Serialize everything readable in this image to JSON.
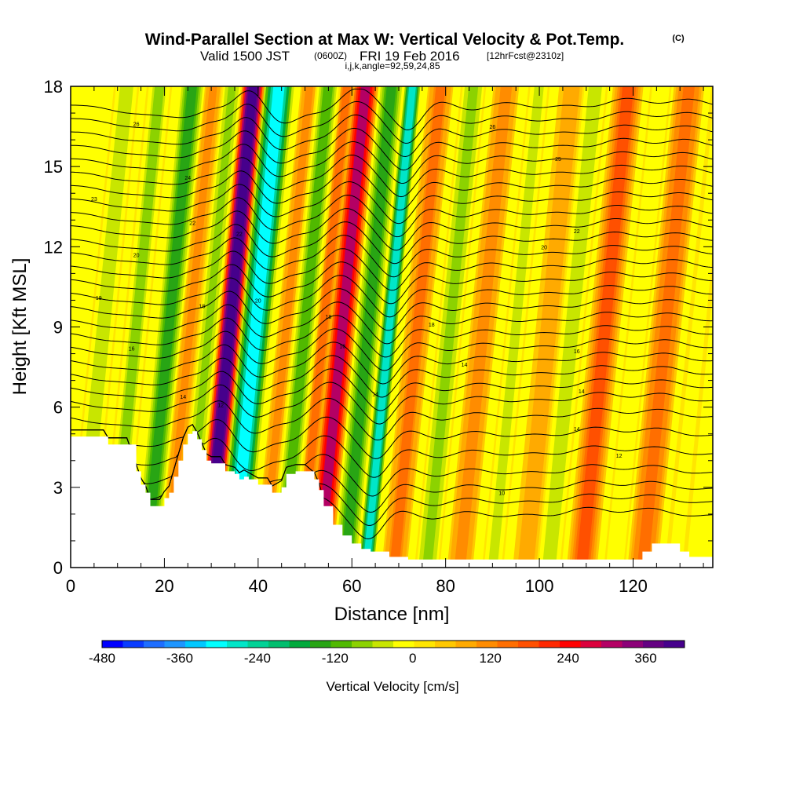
{
  "header": {
    "title": "Wind-Parallel Section at Max W: Vertical Velocity & Pot.Temp.",
    "title_tag": "(C)",
    "valid_prefix": "Valid 1500 JST",
    "valid_utc": "(0600Z)",
    "valid_date": "FRI 19 Feb 2016",
    "forecast": "[12hrFcst@2310z]",
    "indices": "i,j,k,angle=92,59,24,85"
  },
  "chart_data": {
    "type": "heatmap",
    "xlabel": "Distance [nm]",
    "ylabel": "Height [Kft MSL]",
    "xlim": [
      0,
      137
    ],
    "ylim": [
      0,
      18
    ],
    "x_ticks": [
      0,
      20,
      40,
      60,
      80,
      100,
      120
    ],
    "x_tick_labels": [
      "0",
      "20",
      "40",
      "60",
      "80",
      "100",
      "120"
    ],
    "y_ticks": [
      0,
      3,
      6,
      9,
      12,
      15,
      18
    ],
    "y_tick_labels": [
      "0",
      "3",
      "6",
      "9",
      "12",
      "15",
      "18"
    ],
    "colorbar": {
      "label": "Vertical Velocity [cm/s]",
      "min": -480,
      "max": 420,
      "step": 30,
      "tick_values": [
        -480,
        -360,
        -240,
        -120,
        0,
        120,
        240,
        360
      ],
      "tick_labels": [
        "-480",
        "-360",
        "-240",
        "-120",
        "0",
        "120",
        "240",
        "360"
      ],
      "colors": [
        "#0000ff",
        "#0a3cff",
        "#1e6eff",
        "#1e96ff",
        "#00c8ff",
        "#00ffff",
        "#00e6c8",
        "#00d296",
        "#00be6e",
        "#00aa3c",
        "#28a514",
        "#50b900",
        "#8cd200",
        "#c8e600",
        "#ffff00",
        "#ffe600",
        "#ffc800",
        "#ffaa00",
        "#ff8c00",
        "#ff6e00",
        "#ff5000",
        "#ff2800",
        "#ff0000",
        "#dc003c",
        "#b40064",
        "#8c0078",
        "#640082",
        "#46008c"
      ]
    },
    "w_bands": [
      {
        "x": 7,
        "w": -90,
        "width": 2.5
      },
      {
        "x": 14,
        "w": -100,
        "width": 2.5
      },
      {
        "x": 21,
        "w": -160,
        "width": 2.5
      },
      {
        "x": 25.5,
        "w": 60,
        "width": 2
      },
      {
        "x": 29.5,
        "w": -110,
        "width": 2
      },
      {
        "x": 34,
        "w": 400,
        "width": 2.2
      },
      {
        "x": 39.5,
        "w": -330,
        "width": 3
      },
      {
        "x": 46,
        "w": 60,
        "width": 2
      },
      {
        "x": 50,
        "w": -140,
        "width": 2.5
      },
      {
        "x": 54,
        "w": 90,
        "width": 2
      },
      {
        "x": 58,
        "w": 260,
        "width": 2.5
      },
      {
        "x": 63.5,
        "w": -160,
        "width": 2.5
      },
      {
        "x": 68,
        "w": -300,
        "width": 1.8
      },
      {
        "x": 74,
        "w": 90,
        "width": 2.5
      },
      {
        "x": 81,
        "w": -110,
        "width": 2.5
      },
      {
        "x": 88,
        "w": 70,
        "width": 3
      },
      {
        "x": 95,
        "w": -70,
        "width": 2.5
      },
      {
        "x": 102,
        "w": 40,
        "width": 3
      },
      {
        "x": 107,
        "w": -80,
        "width": 2.5
      },
      {
        "x": 114,
        "w": 120,
        "width": 3
      },
      {
        "x": 121,
        "w": -60,
        "width": 2.5
      },
      {
        "x": 127,
        "w": 110,
        "width": 3
      },
      {
        "x": 134,
        "w": -50,
        "width": 2.5
      }
    ],
    "isentrope_levels": [
      2,
      2.5,
      3,
      3.6,
      4.3,
      5,
      5.7,
      6.3,
      6.8,
      7.3,
      7.8,
      8.3,
      8.8,
      9.3,
      9.8,
      10.3,
      10.8,
      11.3,
      11.8,
      12.3,
      12.8,
      13.3,
      13.8,
      14.3,
      14.8,
      15.3,
      15.8,
      16.3,
      16.8,
      17.3
    ],
    "isentrope_labels": [
      {
        "x": 14,
        "y": 16.6,
        "text": "26"
      },
      {
        "x": 25,
        "y": 14.6,
        "text": "24"
      },
      {
        "x": 5,
        "y": 13.8,
        "text": "23"
      },
      {
        "x": 26,
        "y": 12.9,
        "text": "22"
      },
      {
        "x": 14,
        "y": 11.7,
        "text": "20"
      },
      {
        "x": 6,
        "y": 10.1,
        "text": "19"
      },
      {
        "x": 28,
        "y": 9.8,
        "text": "18"
      },
      {
        "x": 13,
        "y": 8.2,
        "text": "16"
      },
      {
        "x": 24,
        "y": 6.4,
        "text": "14"
      },
      {
        "x": 32,
        "y": 6.1,
        "text": "12"
      },
      {
        "x": 36,
        "y": 12.5,
        "text": "22"
      },
      {
        "x": 40,
        "y": 10,
        "text": "20"
      },
      {
        "x": 55,
        "y": 9.4,
        "text": "18"
      },
      {
        "x": 58,
        "y": 8.3,
        "text": "16"
      },
      {
        "x": 65,
        "y": 6.5,
        "text": "14"
      },
      {
        "x": 77,
        "y": 9.1,
        "text": "18"
      },
      {
        "x": 84,
        "y": 7.6,
        "text": "14"
      },
      {
        "x": 101,
        "y": 12,
        "text": "20"
      },
      {
        "x": 108,
        "y": 12.6,
        "text": "22"
      },
      {
        "x": 104,
        "y": 15.3,
        "text": "25"
      },
      {
        "x": 90,
        "y": 16.5,
        "text": "26"
      },
      {
        "x": 108,
        "y": 8.1,
        "text": "16"
      },
      {
        "x": 109,
        "y": 6.6,
        "text": "14"
      },
      {
        "x": 108,
        "y": 5.2,
        "text": "14"
      },
      {
        "x": 117,
        "y": 4.2,
        "text": "12"
      },
      {
        "x": 92,
        "y": 2.8,
        "text": "10"
      }
    ],
    "terrain": [
      [
        0,
        4.9
      ],
      [
        7,
        4.9
      ],
      [
        8,
        4.6
      ],
      [
        12,
        4.6
      ],
      [
        14,
        3.6
      ],
      [
        15,
        3.1
      ],
      [
        16,
        2.8
      ],
      [
        17,
        2.3
      ],
      [
        19,
        2.3
      ],
      [
        20,
        2.6
      ],
      [
        21,
        2.8
      ],
      [
        22,
        3.4
      ],
      [
        23,
        4.0
      ],
      [
        24,
        4.6
      ],
      [
        25,
        5.0
      ],
      [
        26,
        5.1
      ],
      [
        27,
        4.8
      ],
      [
        28,
        4.4
      ],
      [
        29,
        4.0
      ],
      [
        30,
        3.9
      ],
      [
        32,
        3.9
      ],
      [
        33,
        3.6
      ],
      [
        35,
        3.5
      ],
      [
        36,
        3.3
      ],
      [
        37,
        3.4
      ],
      [
        38,
        3.3
      ],
      [
        40,
        3.1
      ],
      [
        42,
        3.1
      ],
      [
        43,
        2.8
      ],
      [
        45,
        3.0
      ],
      [
        46,
        3.5
      ],
      [
        48,
        3.6
      ],
      [
        50,
        3.6
      ],
      [
        52,
        3.3
      ],
      [
        53,
        2.9
      ],
      [
        54,
        2.3
      ],
      [
        56,
        1.6
      ],
      [
        58,
        1.2
      ],
      [
        60,
        0.9
      ],
      [
        62,
        0.7
      ],
      [
        64,
        0.6
      ],
      [
        66,
        0.6
      ],
      [
        68,
        0.4
      ],
      [
        72,
        0.3
      ],
      [
        90,
        0.3
      ],
      [
        100,
        0.3
      ],
      [
        120,
        0.3
      ],
      [
        122,
        0.6
      ],
      [
        124,
        0.9
      ],
      [
        128,
        0.9
      ],
      [
        130,
        0.6
      ],
      [
        132,
        0.4
      ],
      [
        137,
        0.4
      ]
    ]
  }
}
